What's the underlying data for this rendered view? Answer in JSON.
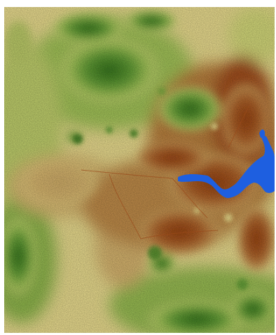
{
  "map": {
    "kind": "elevation raster",
    "palette": {
      "low": "#8e3e10",
      "mid_low": "#b27a3a",
      "mid": "#e7dc8c",
      "mid_high": "#a6c55a",
      "high": "#2f6b1a",
      "water": "#1e5fe0",
      "background": "#ffffff"
    },
    "legend_shown": false,
    "title_shown": false
  }
}
